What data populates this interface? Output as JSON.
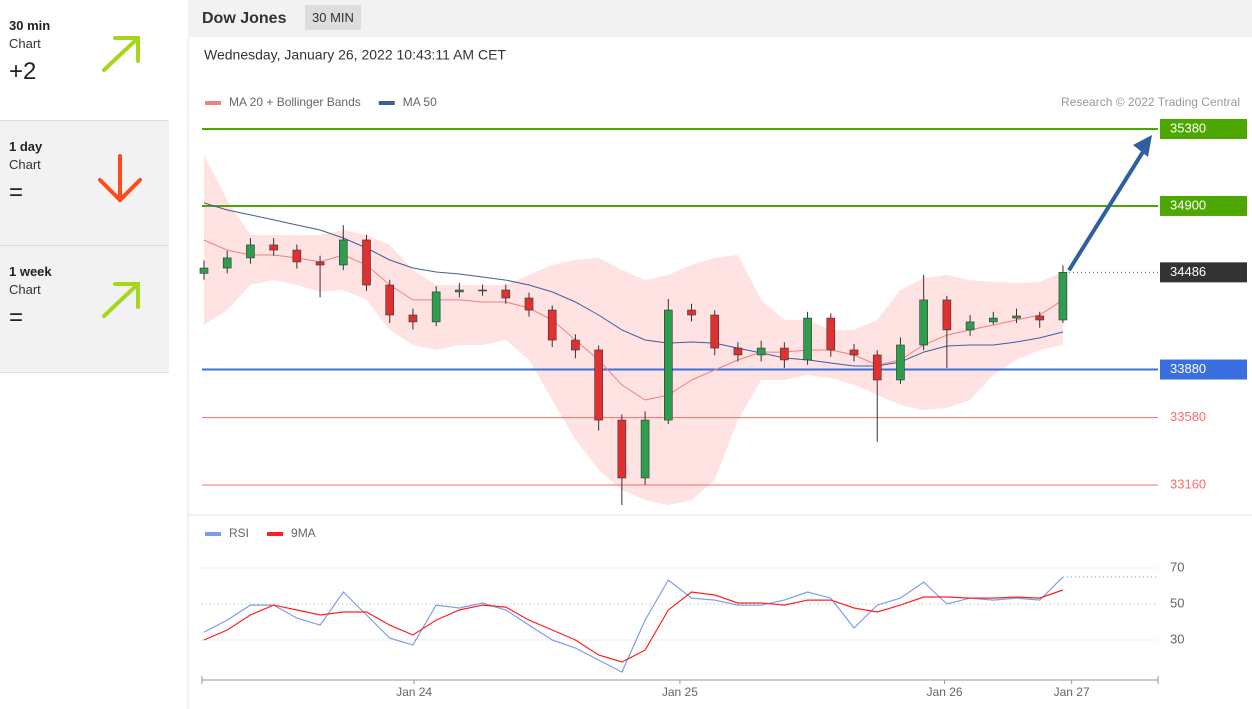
{
  "sidebar": [
    {
      "title": "30 min",
      "subtitle": "Chart",
      "value": "+2"
    },
    {
      "title": "1 day",
      "subtitle": "Chart",
      "value": "="
    },
    {
      "title": "1 week",
      "subtitle": "Chart",
      "value": "="
    }
  ],
  "header": {
    "title": "Dow Jones",
    "interval": "30 MIN"
  },
  "chart_data": [
    {
      "type": "candlestick",
      "subtitle": "Wednesday, January 26, 2022 10:43:11 AM CET",
      "credit": "Research © 2022 Trading Central",
      "x": [
        0,
        4,
        8,
        12,
        16,
        20,
        24,
        28,
        32,
        36,
        40,
        44,
        48,
        52,
        56,
        60,
        64,
        68,
        72,
        76,
        80,
        84,
        88,
        92,
        96,
        100,
        104,
        108,
        112,
        116,
        120,
        124,
        128,
        132,
        136,
        140,
        144,
        148
      ],
      "xlim": [
        0,
        164.5
      ],
      "ylim": [
        32973,
        35436
      ],
      "up_color": "#2e9e4e",
      "down_color": "#e03030",
      "open": [
        34480,
        34513,
        34576,
        34657,
        34625,
        34551,
        34532,
        34688,
        34407,
        34220,
        34177,
        34364,
        34376,
        34376,
        34326,
        34251,
        34064,
        34002,
        33565,
        33204,
        33565,
        34251,
        34220,
        34014,
        33971,
        34014,
        33940,
        34201,
        34002,
        33971,
        33815,
        34033,
        34314,
        34127,
        34177,
        34201,
        34214,
        34189
      ],
      "high": [
        34560,
        34620,
        34700,
        34700,
        34660,
        34590,
        34780,
        34720,
        34440,
        34260,
        34400,
        34420,
        34410,
        34410,
        34360,
        34280,
        34100,
        34030,
        33600,
        33620,
        34320,
        34290,
        34250,
        34050,
        34060,
        34050,
        34240,
        34230,
        34040,
        34000,
        34080,
        34470,
        34340,
        34220,
        34240,
        34260,
        34240,
        34530
      ],
      "low": [
        34440,
        34480,
        34540,
        34590,
        34510,
        34330,
        34500,
        34370,
        34170,
        34130,
        34150,
        34330,
        34340,
        34290,
        34210,
        34020,
        33950,
        33500,
        33035,
        33160,
        33540,
        34180,
        33970,
        33930,
        33930,
        33890,
        33910,
        33960,
        33930,
        33430,
        33790,
        34000,
        33890,
        34090,
        34160,
        34170,
        34140,
        34170
      ],
      "close": [
        34513,
        34576,
        34657,
        34625,
        34551,
        34532,
        34688,
        34407,
        34220,
        34177,
        34364,
        34376,
        34376,
        34326,
        34251,
        34064,
        34002,
        33565,
        33204,
        33565,
        34251,
        34220,
        34014,
        33971,
        34014,
        33940,
        34201,
        34002,
        33971,
        33815,
        34033,
        34314,
        34127,
        34177,
        34201,
        34214,
        34189,
        34486
      ],
      "series": [
        {
          "name": "MA 20 + Bollinger Bands",
          "color": "#f08080",
          "band_color": "#ffdada",
          "values": [
            34688,
            34625,
            34594,
            34594,
            34576,
            34551,
            34594,
            34532,
            34407,
            34314,
            34314,
            34314,
            34301,
            34301,
            34264,
            34189,
            34064,
            33940,
            33784,
            33690,
            33721,
            33815,
            33877,
            33940,
            33989,
            33989,
            34002,
            34002,
            33971,
            33908,
            33940,
            34033,
            34095,
            34127,
            34158,
            34189,
            34220,
            34314
          ],
          "upper": [
            35218,
            34937,
            34719,
            34719,
            34719,
            34719,
            34750,
            34719,
            34657,
            34501,
            34407,
            34407,
            34407,
            34407,
            34470,
            34532,
            34563,
            34576,
            34501,
            34438,
            34470,
            34532,
            34576,
            34594,
            34314,
            34189,
            34189,
            34127,
            34127,
            34189,
            34376,
            34451,
            34470,
            34438,
            34426,
            34420,
            34426,
            34488
          ],
          "lower": [
            34158,
            34251,
            34407,
            34438,
            34407,
            34364,
            34376,
            34314,
            34127,
            34033,
            34002,
            34033,
            34033,
            34064,
            33940,
            33690,
            33441,
            33254,
            33129,
            33066,
            33035,
            33066,
            33191,
            33565,
            33815,
            33815,
            33846,
            33827,
            33784,
            33721,
            33659,
            33628,
            33640,
            33690,
            33846,
            33940,
            34002,
            34033
          ]
        },
        {
          "name": "MA 50",
          "color": "#3c5fa0",
          "values": [
            34919,
            34875,
            34844,
            34813,
            34781,
            34750,
            34700,
            34638,
            34563,
            34513,
            34488,
            34476,
            34457,
            34438,
            34407,
            34364,
            34301,
            34220,
            34127,
            34064,
            34045,
            34052,
            34045,
            34014,
            33983,
            33952,
            33940,
            33921,
            33902,
            33902,
            33927,
            33989,
            34027,
            34033,
            34033,
            34052,
            34077,
            34114
          ]
        }
      ],
      "levels": [
        {
          "value": 35380,
          "color": "#4ca800",
          "badge": true
        },
        {
          "value": 34900,
          "color": "#4ca800",
          "badge": true
        },
        {
          "value": 33880,
          "color": "#3b6ee0",
          "badge": true
        },
        {
          "value": 33580,
          "color": "#ff6b6b",
          "badge": false
        },
        {
          "value": 33160,
          "color": "#ff6b6b",
          "badge": false
        }
      ],
      "last_price": 34486,
      "last_color": "#333333",
      "target_arrow_color": "#2f5f9e"
    },
    {
      "type": "line",
      "x": [
        0,
        4,
        8,
        12,
        16,
        20,
        24,
        28,
        32,
        36,
        40,
        44,
        48,
        52,
        56,
        60,
        64,
        68,
        72,
        76,
        80,
        84,
        88,
        92,
        96,
        100,
        104,
        108,
        112,
        116,
        120,
        124,
        128,
        132,
        136,
        140,
        144,
        148
      ],
      "xlim": [
        0,
        164.5
      ],
      "ylim": [
        7.8,
        82.8
      ],
      "yticks": [
        30,
        50,
        70
      ],
      "grid": true,
      "xticks": [
        {
          "value": 36.2,
          "label": "Jan 24"
        },
        {
          "value": 82,
          "label": "Jan 25"
        },
        {
          "value": 127.6,
          "label": "Jan 26"
        },
        {
          "value": 149.5,
          "label": "Jan 27"
        }
      ],
      "series": [
        {
          "name": "RSI",
          "color": "#7b9ee8",
          "values": [
            34.4,
            41.1,
            49.4,
            49.4,
            42.2,
            38.3,
            56.7,
            43.9,
            31.1,
            27.2,
            49.4,
            47.8,
            50.6,
            46.7,
            38.3,
            30,
            25.6,
            18.9,
            12.2,
            41.1,
            63.3,
            53.3,
            52.2,
            49.4,
            49.4,
            52.2,
            56.7,
            53.3,
            36.7,
            49.4,
            53.3,
            62.2,
            50,
            53.3,
            52.2,
            53.3,
            52.2,
            65
          ]
        },
        {
          "name": "9MA",
          "color": "#ff2020",
          "values": [
            30,
            35.6,
            43.9,
            49.4,
            46.7,
            43.9,
            45.6,
            45.6,
            38.3,
            32.8,
            41.1,
            46.7,
            49.4,
            48.3,
            41.1,
            35.6,
            30,
            21.7,
            17.8,
            24.4,
            46.7,
            56.7,
            55,
            50.6,
            50.6,
            49.4,
            52.2,
            52.2,
            47.8,
            45.6,
            49.4,
            53.9,
            53.9,
            53.3,
            53.3,
            53.9,
            53.3,
            57.8
          ]
        }
      ]
    }
  ]
}
